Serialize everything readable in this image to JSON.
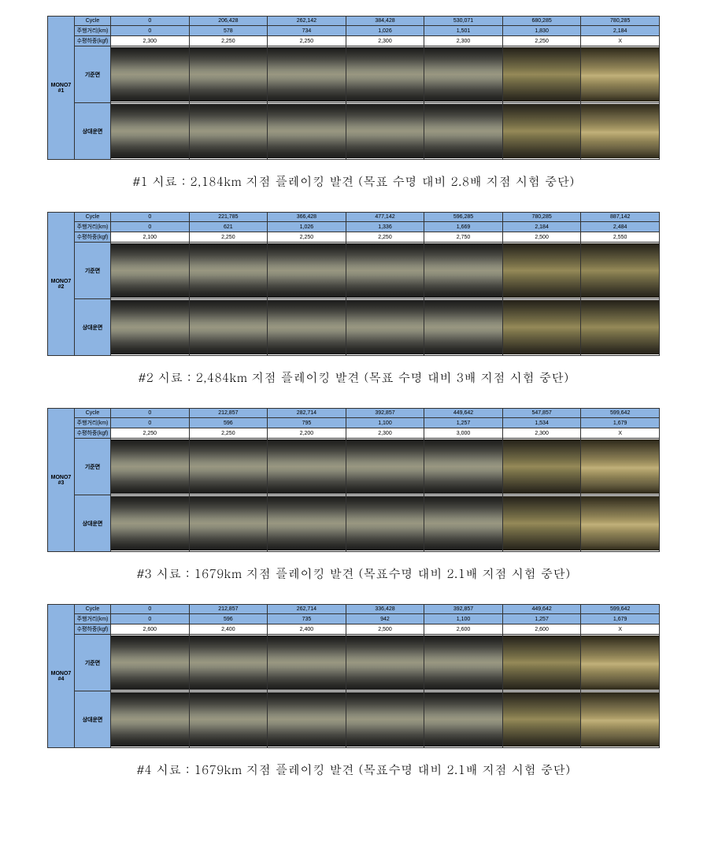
{
  "header_labels": {
    "cycle": "Cycle",
    "distance": "주행거리(km)",
    "load": "수평하중(kgf)",
    "base": "기준면",
    "mate": "상대운면"
  },
  "panels": [
    {
      "side_label": "MONO7\\n#1",
      "cycle": [
        "0",
        "206,428",
        "262,142",
        "384,428",
        "530,071",
        "680,285",
        "780,285"
      ],
      "distance": [
        "0",
        "578",
        "734",
        "1,026",
        "1,501",
        "1,830",
        "2,184"
      ],
      "load": [
        "2,300",
        "2,250",
        "2,250",
        "2,300",
        "2,300",
        "2,250",
        "X"
      ],
      "worn_cols": [
        6
      ],
      "caption": "#1 시료 : 2,184km 지점 플레이킹 발견 (목표 수명 대비 2.8배 지점 시험 중단)"
    },
    {
      "side_label": "MONO7\\n#2",
      "cycle": [
        "0",
        "221,785",
        "366,428",
        "477,142",
        "596,285",
        "780,285",
        "887,142"
      ],
      "distance": [
        "0",
        "621",
        "1,026",
        "1,336",
        "1,669",
        "2,184",
        "2,484"
      ],
      "load": [
        "2,100",
        "2,250",
        "2,250",
        "2,250",
        "2,750",
        "2,500",
        "2,550"
      ],
      "worn_cols": [],
      "caption": "#2 시료 : 2,484km 지점 플레이킹 발견 (목표 수명 대비 3배 지점 시험 중단)"
    },
    {
      "side_label": "MONO7\\n#3",
      "cycle": [
        "0",
        "212,857",
        "282,714",
        "392,857",
        "449,642",
        "547,857",
        "599,642"
      ],
      "distance": [
        "0",
        "596",
        "795",
        "1,100",
        "1,257",
        "1,534",
        "1,679"
      ],
      "load": [
        "2,250",
        "2,250",
        "2,200",
        "2,300",
        "3,000",
        "2,300",
        "X"
      ],
      "worn_cols": [
        6
      ],
      "caption": "#3 시료 : 1679km 지점 플레이킹 발견 (목표수명 대비 2.1배 지점 시험 중단)"
    },
    {
      "side_label": "MONO7\\n#4",
      "cycle": [
        "0",
        "212,857",
        "262,714",
        "336,428",
        "392,857",
        "449,642",
        "599,642"
      ],
      "distance": [
        "0",
        "596",
        "735",
        "942",
        "1,100",
        "1,257",
        "1,679"
      ],
      "load": [
        "2,600",
        "2,400",
        "2,400",
        "2,500",
        "2,600",
        "2,600",
        "X"
      ],
      "worn_cols": [
        6
      ],
      "caption": "#4 시료 : 1679km 지점 플레이킹 발견 (목표수명 대비 2.1배 지점 시험 중단)"
    }
  ]
}
